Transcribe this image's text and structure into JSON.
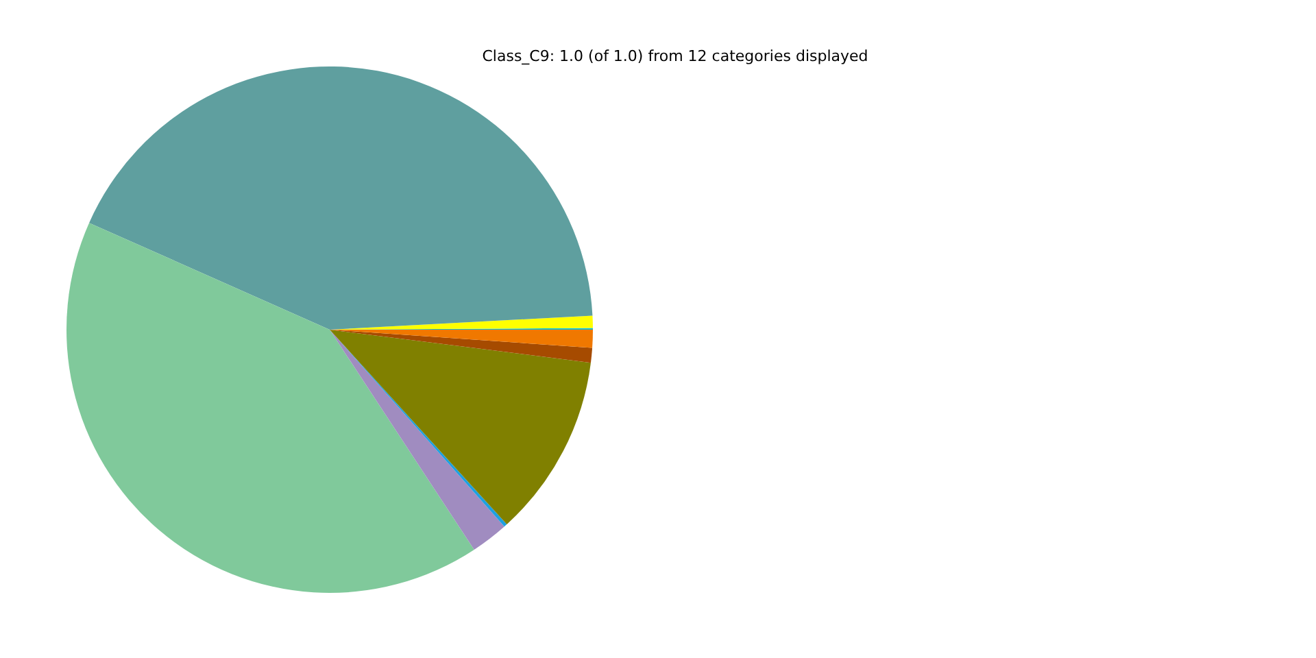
{
  "chart_data": {
    "type": "pie",
    "title": "Class_C9: 1.0 (of 1.0) from 12 categories displayed",
    "categories": [
      null,
      null,
      null,
      null,
      null,
      null,
      null,
      null,
      null
    ],
    "values": [
      0.1,
      0.75,
      42.5,
      40.9,
      2.3,
      0.2,
      11.25,
      0.9,
      1.1
    ],
    "colors": [
      "#17becf",
      "#ffff00",
      "#5f9f9f",
      "#80c99b",
      "#a08cc0",
      "#1ea0e0",
      "#808000",
      "#a64b00",
      "#f07800"
    ],
    "legend": false
  }
}
